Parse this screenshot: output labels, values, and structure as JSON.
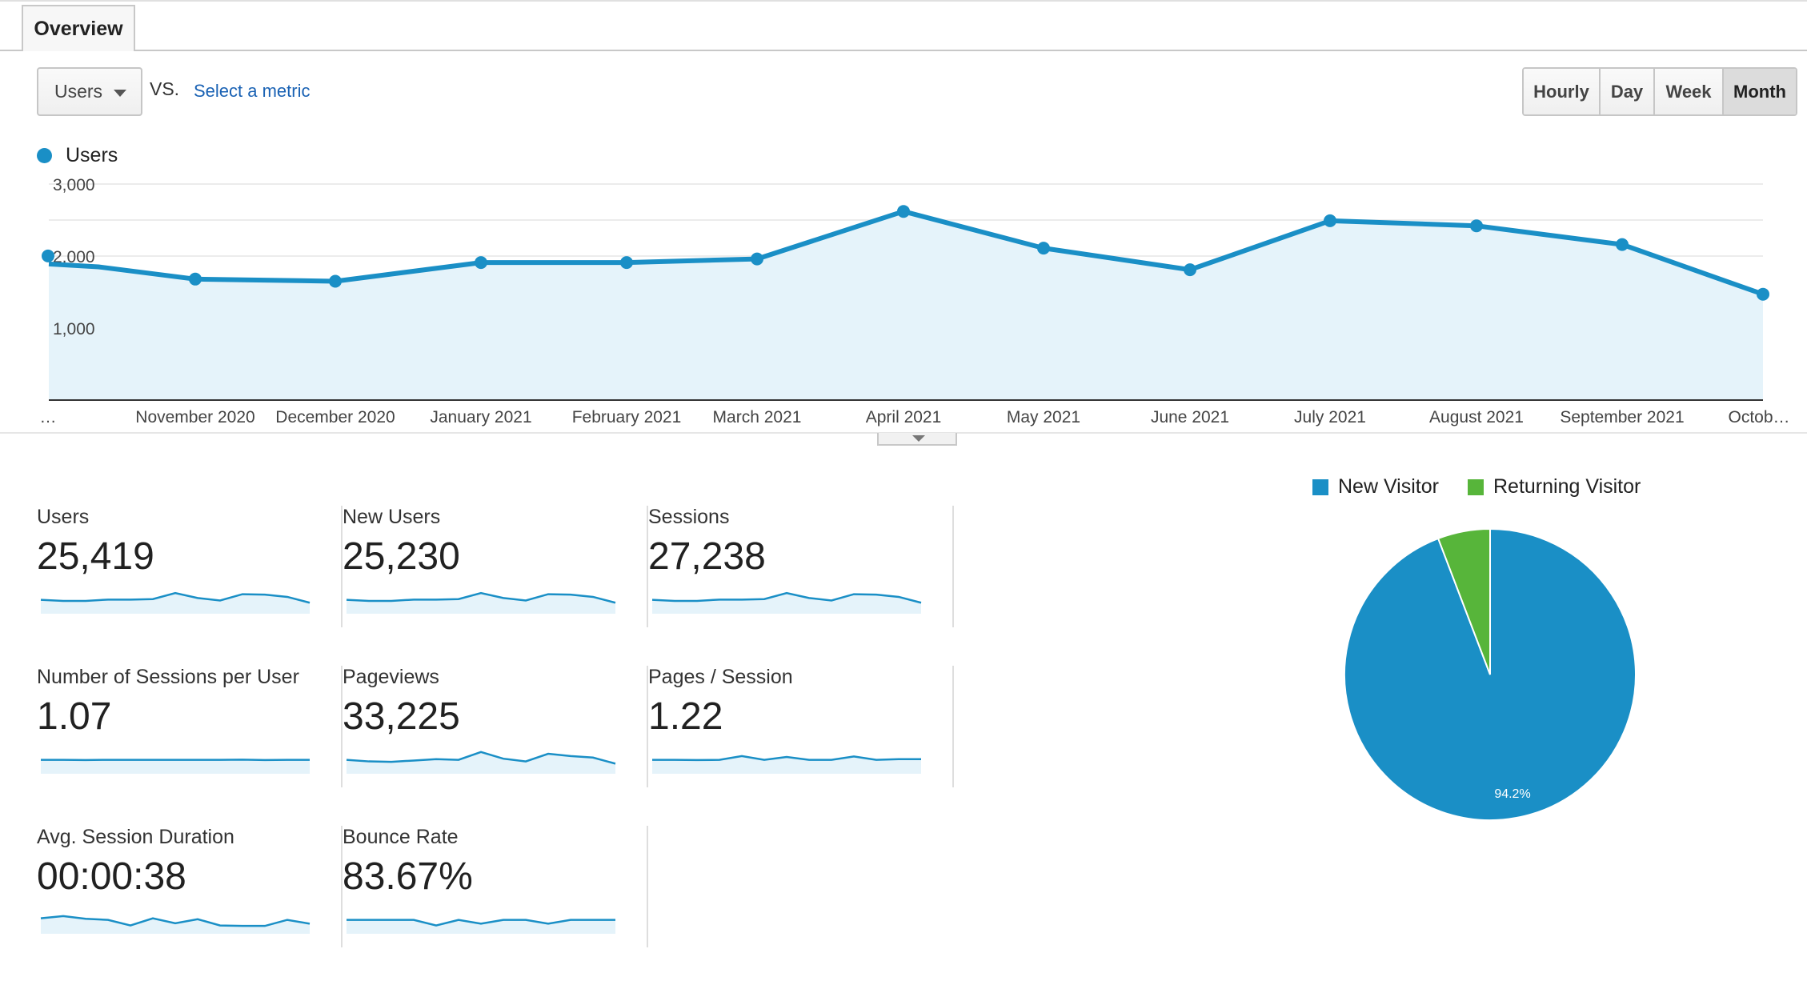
{
  "tab": {
    "label": "Overview"
  },
  "controls": {
    "metric_selected": "Users",
    "vs_label": "VS.",
    "select_metric_link": "Select a metric",
    "granularity": [
      "Hourly",
      "Day",
      "Week",
      "Month"
    ],
    "granularity_selected": "Month"
  },
  "chart_legend": {
    "label": "Users",
    "color": "#1a8fc6"
  },
  "chart_data": [
    {
      "type": "area",
      "series": [
        {
          "name": "Users",
          "values": [
            1890,
            1850,
            1680,
            1650,
            1910,
            1910,
            1960,
            2620,
            2110,
            1810,
            2490,
            2420,
            2160,
            1470
          ]
        }
      ],
      "categories": [
        "…",
        "",
        "November 2020",
        "December 2020",
        "January 2021",
        "February 2021",
        "March 2021",
        "April 2021",
        "May 2021",
        "June 2021",
        "July 2021",
        "August 2021",
        "September 2021",
        "Octob…"
      ],
      "y_ticks": [
        "3,000",
        "2,000",
        "1,000"
      ],
      "ylim": [
        0,
        3000
      ],
      "grid": true,
      "legend": "top-left"
    },
    {
      "type": "pie",
      "categories": [
        "New Visitor",
        "Returning Visitor"
      ],
      "values": [
        94.2,
        5.8
      ],
      "colors": [
        "#1a8fc6",
        "#57b53a"
      ],
      "data_labels": [
        "94.2%",
        ""
      ],
      "legend": "top"
    }
  ],
  "metrics": [
    {
      "label": "Users",
      "value": "25,419",
      "spark": [
        0.55,
        0.5,
        0.5,
        0.56,
        0.56,
        0.58,
        0.85,
        0.63,
        0.52,
        0.8,
        0.78,
        0.68,
        0.42
      ]
    },
    {
      "label": "New Users",
      "value": "25,230",
      "spark": [
        0.55,
        0.5,
        0.5,
        0.56,
        0.56,
        0.58,
        0.85,
        0.63,
        0.52,
        0.8,
        0.78,
        0.68,
        0.42
      ]
    },
    {
      "label": "Sessions",
      "value": "27,238",
      "spark": [
        0.55,
        0.5,
        0.5,
        0.56,
        0.56,
        0.58,
        0.85,
        0.63,
        0.52,
        0.8,
        0.78,
        0.68,
        0.42
      ]
    },
    {
      "label": "Number of Sessions per User",
      "value": "1.07",
      "spark": [
        0.55,
        0.55,
        0.54,
        0.55,
        0.55,
        0.55,
        0.55,
        0.55,
        0.55,
        0.56,
        0.54,
        0.55,
        0.55
      ]
    },
    {
      "label": "Pageviews",
      "value": "33,225",
      "spark": [
        0.55,
        0.48,
        0.46,
        0.52,
        0.58,
        0.55,
        0.9,
        0.6,
        0.48,
        0.82,
        0.72,
        0.65,
        0.38
      ]
    },
    {
      "label": "Pages / Session",
      "value": "1.22",
      "spark": [
        0.55,
        0.55,
        0.54,
        0.55,
        0.72,
        0.55,
        0.68,
        0.55,
        0.55,
        0.7,
        0.55,
        0.58,
        0.58
      ]
    },
    {
      "label": "Avg. Session Duration",
      "value": "00:00:38",
      "spark": [
        0.62,
        0.72,
        0.6,
        0.55,
        0.3,
        0.62,
        0.4,
        0.58,
        0.3,
        0.28,
        0.28,
        0.55,
        0.38
      ]
    },
    {
      "label": "Bounce Rate",
      "value": "83.67%",
      "spark": [
        0.55,
        0.55,
        0.55,
        0.55,
        0.3,
        0.55,
        0.38,
        0.55,
        0.55,
        0.38,
        0.55,
        0.55,
        0.55
      ]
    }
  ]
}
